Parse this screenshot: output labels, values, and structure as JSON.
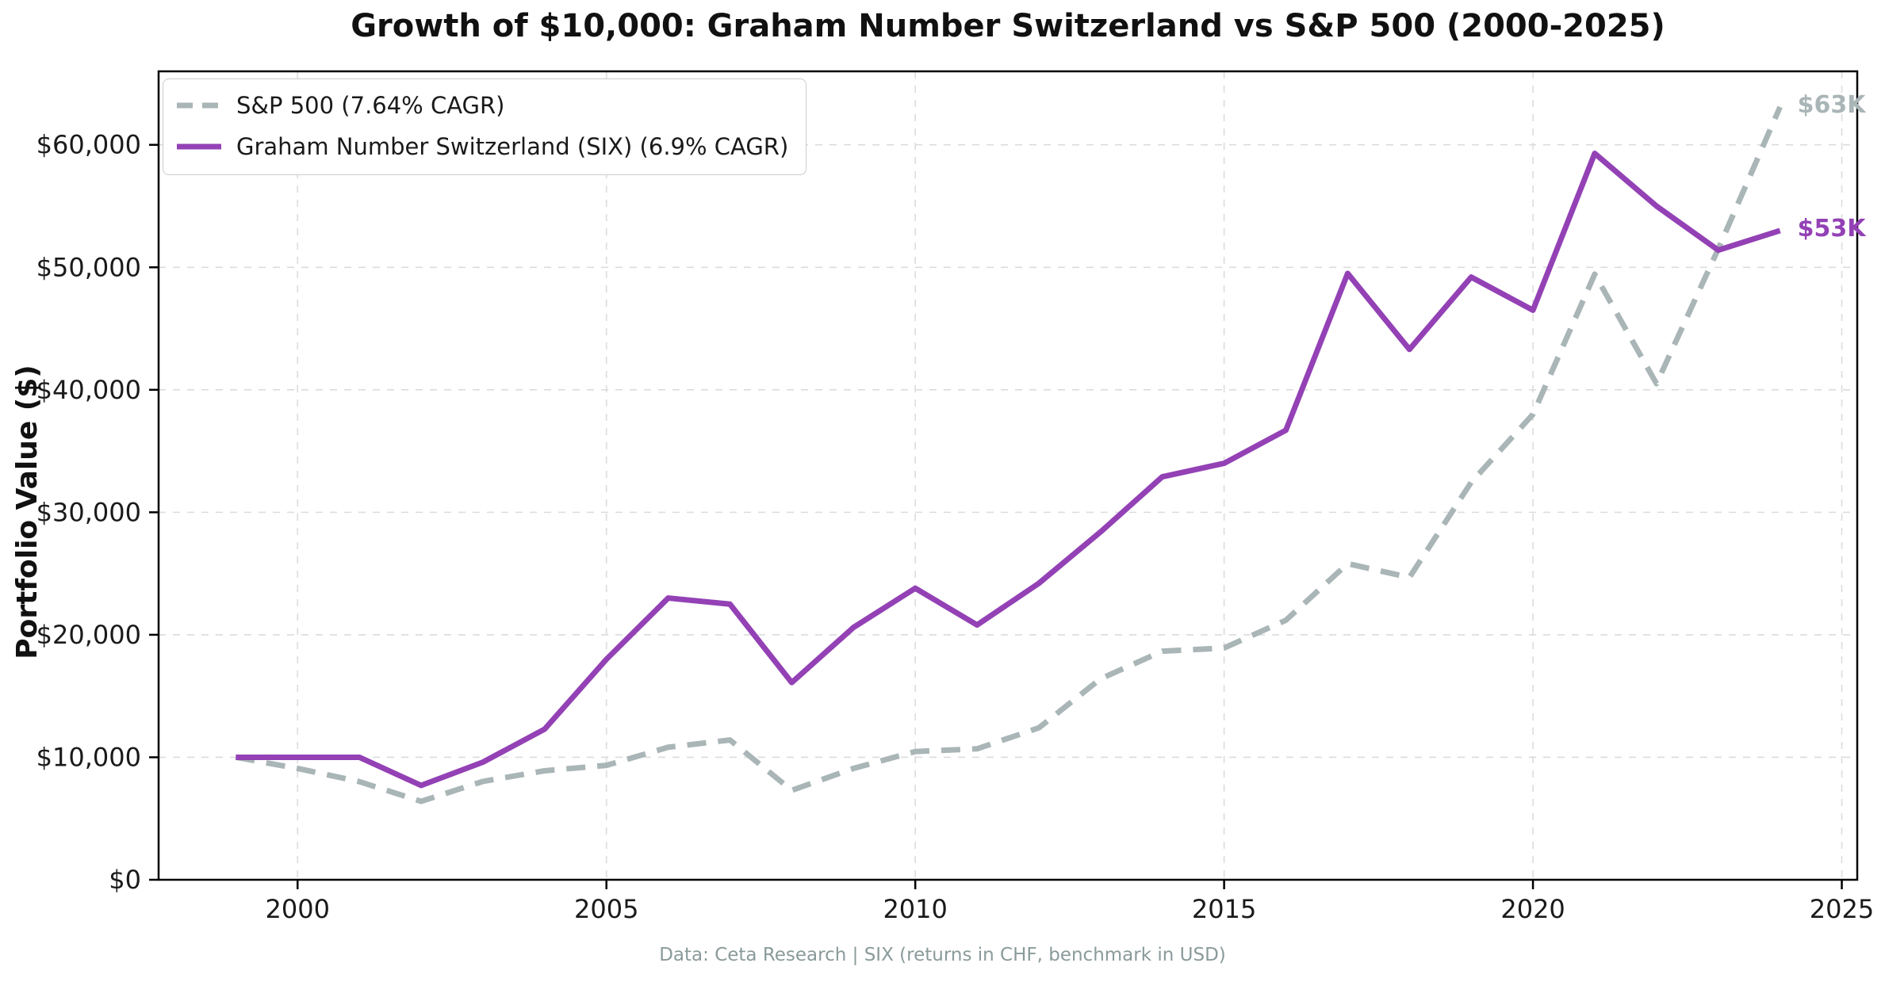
{
  "title": "Growth of $10,000: Graham Number Switzerland vs S&P 500 (2000-2025)",
  "y_axis_label": "Portfolio Value ($)",
  "footer": "Data: Ceta Research | SIX (returns in CHF, benchmark in USD)",
  "colors": {
    "sp500": "#a9b5b6",
    "graham": "#9341b5",
    "grid": "#dcdcdc",
    "spine": "#000000",
    "tick_text": "#1a1a1a",
    "footer_text": "#8a9a9a",
    "background": "#ffffff"
  },
  "legend": {
    "position": "upper left",
    "entries": [
      {
        "label": "S&P 500 (7.64% CAGR)",
        "style": "dashed"
      },
      {
        "label": "Graham Number Switzerland (SIX) (6.9% CAGR)",
        "style": "solid"
      }
    ]
  },
  "annotations": [
    {
      "text": "$63K",
      "series": "S&P 500",
      "color": "#a9b5b6"
    },
    {
      "text": "$53K",
      "series": "Graham Number Switzerland",
      "color": "#9341b5"
    }
  ],
  "chart_data": {
    "type": "line",
    "x": [
      1999,
      2000,
      2001,
      2002,
      2003,
      2004,
      2005,
      2006,
      2007,
      2008,
      2009,
      2010,
      2011,
      2012,
      2013,
      2014,
      2015,
      2016,
      2017,
      2018,
      2019,
      2020,
      2021,
      2022,
      2023,
      2024
    ],
    "series": [
      {
        "name": "S&P 500 (7.64% CAGR)",
        "color": "#a9b5b6",
        "dashed": true,
        "end_label": "$63K",
        "values": [
          10000,
          9090,
          8010,
          6400,
          8030,
          8900,
          9340,
          10820,
          11410,
          7300,
          9090,
          10470,
          10690,
          12400,
          16410,
          18660,
          18920,
          21190,
          25810,
          24680,
          32450,
          38000,
          49440,
          40500,
          51500,
          63090
        ]
      },
      {
        "name": "Graham Number Switzerland (SIX) (6.9% CAGR)",
        "color": "#9341b5",
        "dashed": false,
        "end_label": "$53K",
        "values": [
          10000,
          10000,
          10000,
          7700,
          9600,
          12300,
          18000,
          23000,
          22500,
          16100,
          20600,
          23800,
          20800,
          24200,
          28400,
          32900,
          34000,
          36700,
          49500,
          43300,
          49200,
          46500,
          59300,
          55000,
          51400,
          53000
        ]
      }
    ],
    "title": "Growth of $10,000: Graham Number Switzerland vs S&P 500 (2000-2025)",
    "xlabel": "",
    "ylabel": "Portfolio Value ($)",
    "xlim": [
      1997.75,
      2025.25
    ],
    "ylim": [
      0,
      66000
    ],
    "x_ticks": [
      2000,
      2005,
      2010,
      2015,
      2020,
      2025
    ],
    "y_ticks": [
      {
        "value": 0,
        "label": "$0"
      },
      {
        "value": 10000,
        "label": "$10,000"
      },
      {
        "value": 20000,
        "label": "$20,000"
      },
      {
        "value": 30000,
        "label": "$30,000"
      },
      {
        "value": 40000,
        "label": "$40,000"
      },
      {
        "value": 50000,
        "label": "$50,000"
      },
      {
        "value": 60000,
        "label": "$60,000"
      }
    ],
    "grid": true,
    "legend_position": "upper left"
  }
}
